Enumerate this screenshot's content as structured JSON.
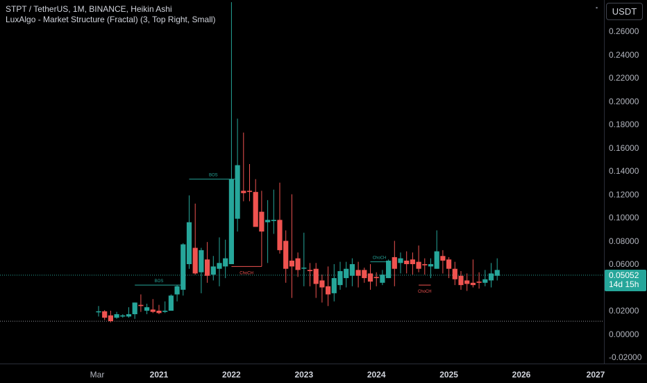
{
  "header": {
    "title_line": "STPT / TetherUS, 1M, BINANCE, Heikin Ashi",
    "indicator_line": "LuxAlgo - Market Structure (Fractal) (3, Top Right, Small)"
  },
  "currency": "USDT",
  "price_tag": {
    "price": "0.05052",
    "countdown": "14d 15h"
  },
  "colors": {
    "up": "#26a69a",
    "down": "#ef5350",
    "background": "#000000",
    "text": "#b2b5be"
  },
  "y_ticks": [
    "0.26000",
    "0.24000",
    "0.22000",
    "0.20000",
    "0.18000",
    "0.16000",
    "0.14000",
    "0.12000",
    "0.10000",
    "0.08000",
    "0.06000",
    "0.04000",
    "0.02000",
    "0.00000",
    "-0.02000"
  ],
  "x_ticks": [
    "Mar",
    "2021",
    "2022",
    "2023",
    "2024",
    "2025",
    "2026",
    "2027"
  ],
  "chart_data": {
    "type": "candlestick",
    "ylim": [
      -0.025,
      0.285
    ],
    "y_ticks": [
      0.26,
      0.24,
      0.22,
      0.2,
      0.18,
      0.16,
      0.14,
      0.12,
      0.1,
      0.08,
      0.06,
      0.04,
      0.02,
      0.0,
      -0.02
    ],
    "candles": [
      {
        "date": "2020-03",
        "o": 0.019,
        "h": 0.024,
        "l": 0.015,
        "c": 0.0195
      },
      {
        "date": "2020-04",
        "o": 0.0195,
        "h": 0.0205,
        "l": 0.012,
        "c": 0.014
      },
      {
        "date": "2020-05",
        "o": 0.016,
        "h": 0.02,
        "l": 0.01,
        "c": 0.011
      },
      {
        "date": "2020-06",
        "o": 0.014,
        "h": 0.019,
        "l": 0.013,
        "c": 0.017
      },
      {
        "date": "2020-07",
        "o": 0.015,
        "h": 0.017,
        "l": 0.014,
        "c": 0.016
      },
      {
        "date": "2020-08",
        "o": 0.015,
        "h": 0.023,
        "l": 0.014,
        "c": 0.017
      },
      {
        "date": "2020-09",
        "o": 0.017,
        "h": 0.027,
        "l": 0.013,
        "c": 0.027
      },
      {
        "date": "2020-10",
        "o": 0.025,
        "h": 0.034,
        "l": 0.019,
        "c": 0.024
      },
      {
        "date": "2020-11",
        "o": 0.02,
        "h": 0.026,
        "l": 0.017,
        "c": 0.023
      },
      {
        "date": "2020-12",
        "o": 0.021,
        "h": 0.03,
        "l": 0.018,
        "c": 0.019
      },
      {
        "date": "2021-01",
        "o": 0.02,
        "h": 0.025,
        "l": 0.017,
        "c": 0.018
      },
      {
        "date": "2021-02",
        "o": 0.019,
        "h": 0.028,
        "l": 0.018,
        "c": 0.02
      },
      {
        "date": "2021-03",
        "o": 0.02,
        "h": 0.034,
        "l": 0.02,
        "c": 0.033
      },
      {
        "date": "2021-04",
        "o": 0.034,
        "h": 0.042,
        "l": 0.028,
        "c": 0.041
      },
      {
        "date": "2021-05",
        "o": 0.038,
        "h": 0.078,
        "l": 0.033,
        "c": 0.077
      },
      {
        "date": "2021-06",
        "o": 0.06,
        "h": 0.119,
        "l": 0.056,
        "c": 0.096
      },
      {
        "date": "2021-07",
        "o": 0.074,
        "h": 0.112,
        "l": 0.051,
        "c": 0.052
      },
      {
        "date": "2021-08",
        "o": 0.053,
        "h": 0.074,
        "l": 0.035,
        "c": 0.072
      },
      {
        "date": "2021-09",
        "o": 0.064,
        "h": 0.079,
        "l": 0.044,
        "c": 0.05
      },
      {
        "date": "2021-10",
        "o": 0.051,
        "h": 0.067,
        "l": 0.046,
        "c": 0.058
      },
      {
        "date": "2021-11",
        "o": 0.056,
        "h": 0.083,
        "l": 0.041,
        "c": 0.061
      },
      {
        "date": "2021-12",
        "o": 0.058,
        "h": 0.081,
        "l": 0.048,
        "c": 0.065
      },
      {
        "date": "2022-01",
        "o": 0.06,
        "h": 0.285,
        "l": 0.06,
        "c": 0.133
      },
      {
        "date": "2022-02",
        "o": 0.099,
        "h": 0.185,
        "l": 0.088,
        "c": 0.145
      },
      {
        "date": "2022-03",
        "o": 0.123,
        "h": 0.173,
        "l": 0.114,
        "c": 0.121
      },
      {
        "date": "2022-04",
        "o": 0.123,
        "h": 0.146,
        "l": 0.114,
        "c": 0.122
      },
      {
        "date": "2022-05",
        "o": 0.122,
        "h": 0.133,
        "l": 0.094,
        "c": 0.092
      },
      {
        "date": "2022-06",
        "o": 0.105,
        "h": 0.123,
        "l": 0.058,
        "c": 0.088
      },
      {
        "date": "2022-07",
        "o": 0.096,
        "h": 0.115,
        "l": 0.061,
        "c": 0.098
      },
      {
        "date": "2022-08",
        "o": 0.097,
        "h": 0.124,
        "l": 0.086,
        "c": 0.098
      },
      {
        "date": "2022-09",
        "o": 0.098,
        "h": 0.13,
        "l": 0.069,
        "c": 0.072
      },
      {
        "date": "2022-10",
        "o": 0.08,
        "h": 0.089,
        "l": 0.044,
        "c": 0.056
      },
      {
        "date": "2022-11",
        "o": 0.063,
        "h": 0.12,
        "l": 0.031,
        "c": 0.058
      },
      {
        "date": "2022-12",
        "o": 0.065,
        "h": 0.07,
        "l": 0.049,
        "c": 0.055
      },
      {
        "date": "2023-01",
        "o": 0.057,
        "h": 0.087,
        "l": 0.041,
        "c": 0.057
      },
      {
        "date": "2023-02",
        "o": 0.055,
        "h": 0.061,
        "l": 0.041,
        "c": 0.054
      },
      {
        "date": "2023-03",
        "o": 0.056,
        "h": 0.061,
        "l": 0.031,
        "c": 0.043
      },
      {
        "date": "2023-04",
        "o": 0.046,
        "h": 0.051,
        "l": 0.027,
        "c": 0.04
      },
      {
        "date": "2023-05",
        "o": 0.041,
        "h": 0.058,
        "l": 0.024,
        "c": 0.034
      },
      {
        "date": "2023-06",
        "o": 0.035,
        "h": 0.06,
        "l": 0.028,
        "c": 0.048
      },
      {
        "date": "2023-07",
        "o": 0.042,
        "h": 0.062,
        "l": 0.038,
        "c": 0.054
      },
      {
        "date": "2023-08",
        "o": 0.048,
        "h": 0.062,
        "l": 0.04,
        "c": 0.056
      },
      {
        "date": "2023-09",
        "o": 0.05,
        "h": 0.065,
        "l": 0.041,
        "c": 0.06
      },
      {
        "date": "2023-10",
        "o": 0.055,
        "h": 0.062,
        "l": 0.04,
        "c": 0.05
      },
      {
        "date": "2023-11",
        "o": 0.055,
        "h": 0.057,
        "l": 0.044,
        "c": 0.048
      },
      {
        "date": "2023-12",
        "o": 0.052,
        "h": 0.06,
        "l": 0.038,
        "c": 0.045
      },
      {
        "date": "2024-01",
        "o": 0.049,
        "h": 0.053,
        "l": 0.041,
        "c": 0.048
      },
      {
        "date": "2024-02",
        "o": 0.044,
        "h": 0.055,
        "l": 0.042,
        "c": 0.051
      },
      {
        "date": "2024-03",
        "o": 0.048,
        "h": 0.064,
        "l": 0.048,
        "c": 0.063
      },
      {
        "date": "2024-04",
        "o": 0.066,
        "h": 0.08,
        "l": 0.041,
        "c": 0.056
      },
      {
        "date": "2024-05",
        "o": 0.061,
        "h": 0.07,
        "l": 0.052,
        "c": 0.065
      },
      {
        "date": "2024-06",
        "o": 0.063,
        "h": 0.071,
        "l": 0.052,
        "c": 0.06
      },
      {
        "date": "2024-07",
        "o": 0.064,
        "h": 0.07,
        "l": 0.051,
        "c": 0.06
      },
      {
        "date": "2024-08",
        "o": 0.062,
        "h": 0.076,
        "l": 0.053,
        "c": 0.056
      },
      {
        "date": "2024-09",
        "o": 0.06,
        "h": 0.065,
        "l": 0.051,
        "c": 0.059
      },
      {
        "date": "2024-10",
        "o": 0.058,
        "h": 0.065,
        "l": 0.048,
        "c": 0.06
      },
      {
        "date": "2024-11",
        "o": 0.056,
        "h": 0.089,
        "l": 0.056,
        "c": 0.071
      },
      {
        "date": "2024-12",
        "o": 0.067,
        "h": 0.072,
        "l": 0.052,
        "c": 0.063
      },
      {
        "date": "2025-01",
        "o": 0.064,
        "h": 0.066,
        "l": 0.048,
        "c": 0.056
      },
      {
        "date": "2025-02",
        "o": 0.056,
        "h": 0.062,
        "l": 0.042,
        "c": 0.047
      },
      {
        "date": "2025-03",
        "o": 0.05,
        "h": 0.054,
        "l": 0.038,
        "c": 0.042
      },
      {
        "date": "2025-04",
        "o": 0.046,
        "h": 0.052,
        "l": 0.037,
        "c": 0.043
      },
      {
        "date": "2025-05",
        "o": 0.044,
        "h": 0.064,
        "l": 0.04,
        "c": 0.042
      },
      {
        "date": "2025-06",
        "o": 0.045,
        "h": 0.053,
        "l": 0.039,
        "c": 0.044
      },
      {
        "date": "2025-07",
        "o": 0.044,
        "h": 0.055,
        "l": 0.041,
        "c": 0.047
      },
      {
        "date": "2025-08",
        "o": 0.046,
        "h": 0.061,
        "l": 0.04,
        "c": 0.052
      },
      {
        "date": "2025-09",
        "o": 0.05,
        "h": 0.065,
        "l": 0.046,
        "c": 0.055
      }
    ],
    "current_price_line": 0.05052,
    "low_level_line": 0.011,
    "annotations": [
      {
        "label": "BOS",
        "from": "2020-09",
        "to": "2021-05",
        "y": 0.042,
        "color": "#26a69a"
      },
      {
        "label": "BOS",
        "from": "2021-06",
        "to": "2022-02",
        "y": 0.133,
        "color": "#26a69a"
      },
      {
        "label": "ChoCH",
        "from": "2022-01",
        "to": "2022-06",
        "y": 0.058,
        "color": "#ef5350"
      },
      {
        "label": "ChoCH",
        "from": "2023-12",
        "to": "2024-03",
        "y": 0.062,
        "color": "#26a69a"
      },
      {
        "label": "ChoCH",
        "from": "2024-08",
        "to": "2024-10",
        "y": 0.042,
        "color": "#ef5350"
      }
    ]
  }
}
